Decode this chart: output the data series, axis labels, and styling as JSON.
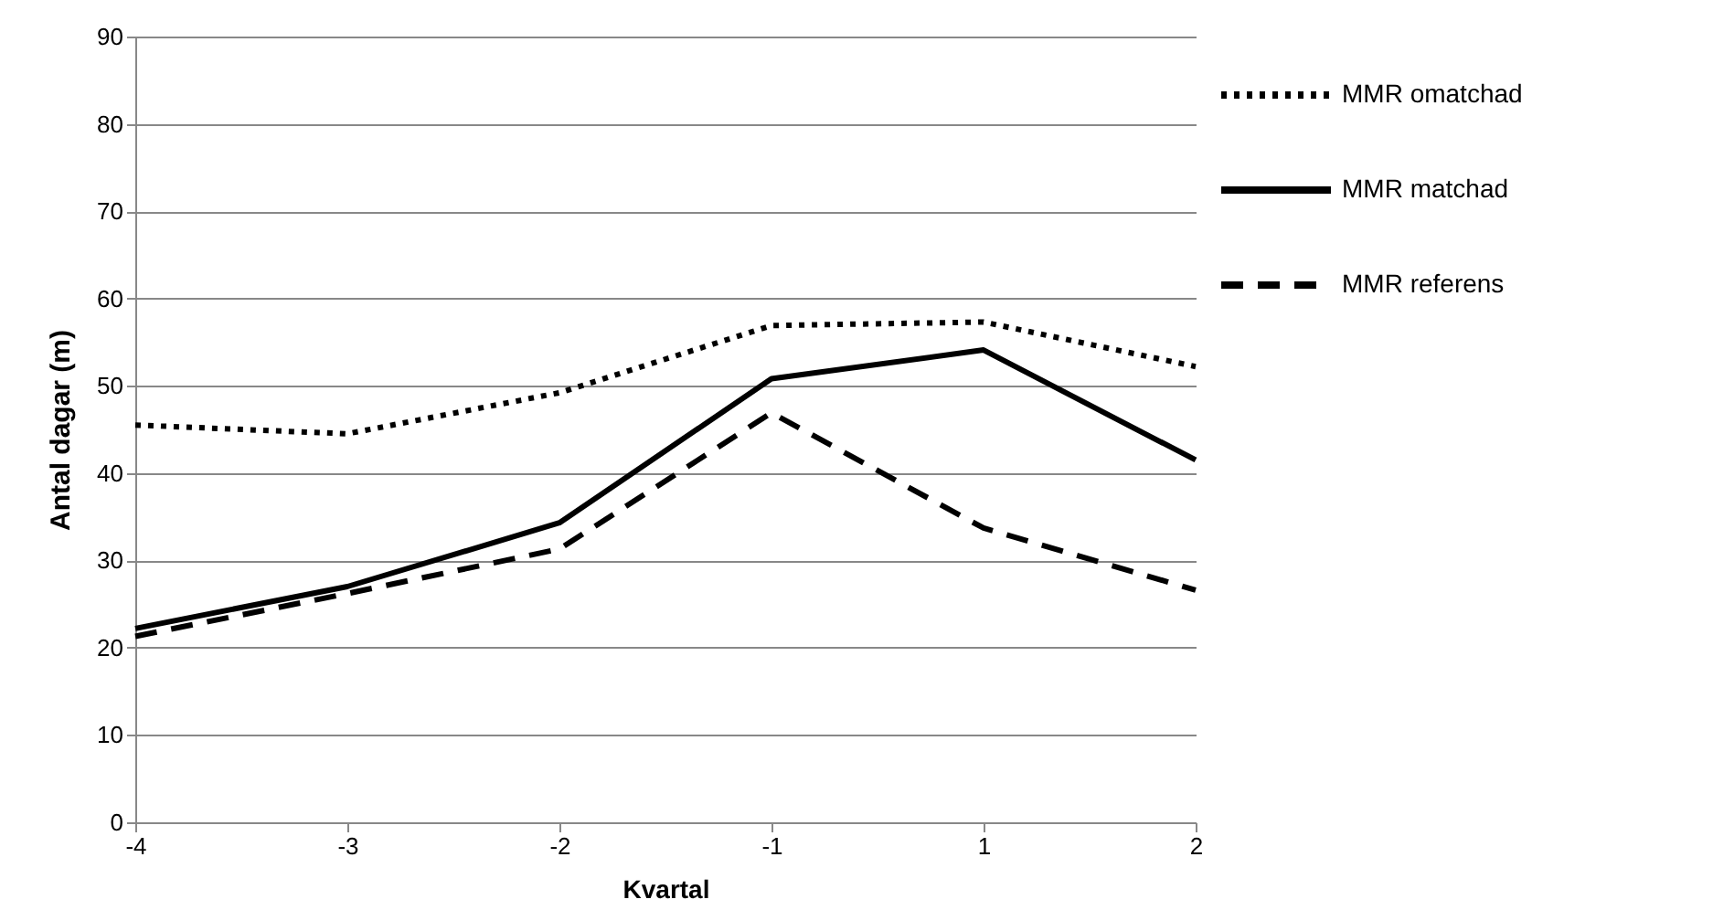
{
  "chart_data": {
    "type": "line",
    "xlabel": "Kvartal",
    "ylabel": "Antal dagar (m)",
    "categories": [
      "-4",
      "-3",
      "-2",
      "-1",
      "1",
      "2"
    ],
    "series": [
      {
        "name": "MMR omatchad",
        "color": "#000000",
        "line_style": "dotted",
        "values": [
          45.5,
          44.5,
          49.2,
          56.9,
          57.3,
          52.2
        ]
      },
      {
        "name": "MMR matchad",
        "color": "#000000",
        "line_style": "solid",
        "values": [
          22.2,
          27,
          34.3,
          50.8,
          54.1,
          41.5
        ]
      },
      {
        "name": "MMR referens",
        "color": "#000000",
        "line_style": "dashed",
        "values": [
          21.3,
          26.2,
          31.3,
          46.9,
          33.7,
          26.6
        ]
      }
    ],
    "ylim": [
      0,
      90
    ],
    "yticks": [
      0,
      10,
      20,
      30,
      40,
      50,
      60,
      70,
      80,
      90
    ],
    "grid": "y",
    "legend": "right",
    "marker": "none"
  }
}
